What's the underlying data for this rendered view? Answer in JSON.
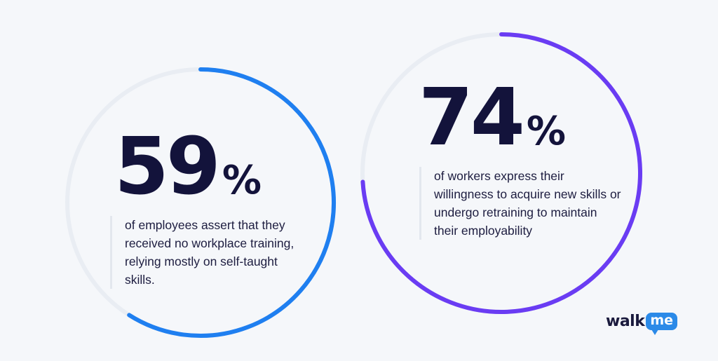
{
  "chart_data": [
    {
      "type": "pie",
      "value_percent": 59,
      "big_number": "59",
      "percent_sign": "%",
      "description": "of employees assert that they received no workplace training, relying mostly on self-taught skills.",
      "colors": {
        "progress": "#1f7ff0",
        "track": "#e9edf3"
      }
    },
    {
      "type": "pie",
      "value_percent": 74,
      "big_number": "74",
      "percent_sign": "%",
      "description": "of workers express their willingness to acquire new skills or undergo retraining to maintain their employability",
      "colors": {
        "progress": "#6a3cf3",
        "track": "#e9edf3"
      }
    }
  ],
  "logo": {
    "walk": "walk",
    "me": "me"
  },
  "colors": {
    "background": "#f5f7fa",
    "heading": "#13133b",
    "logo_accent": "#2b8ae8"
  }
}
